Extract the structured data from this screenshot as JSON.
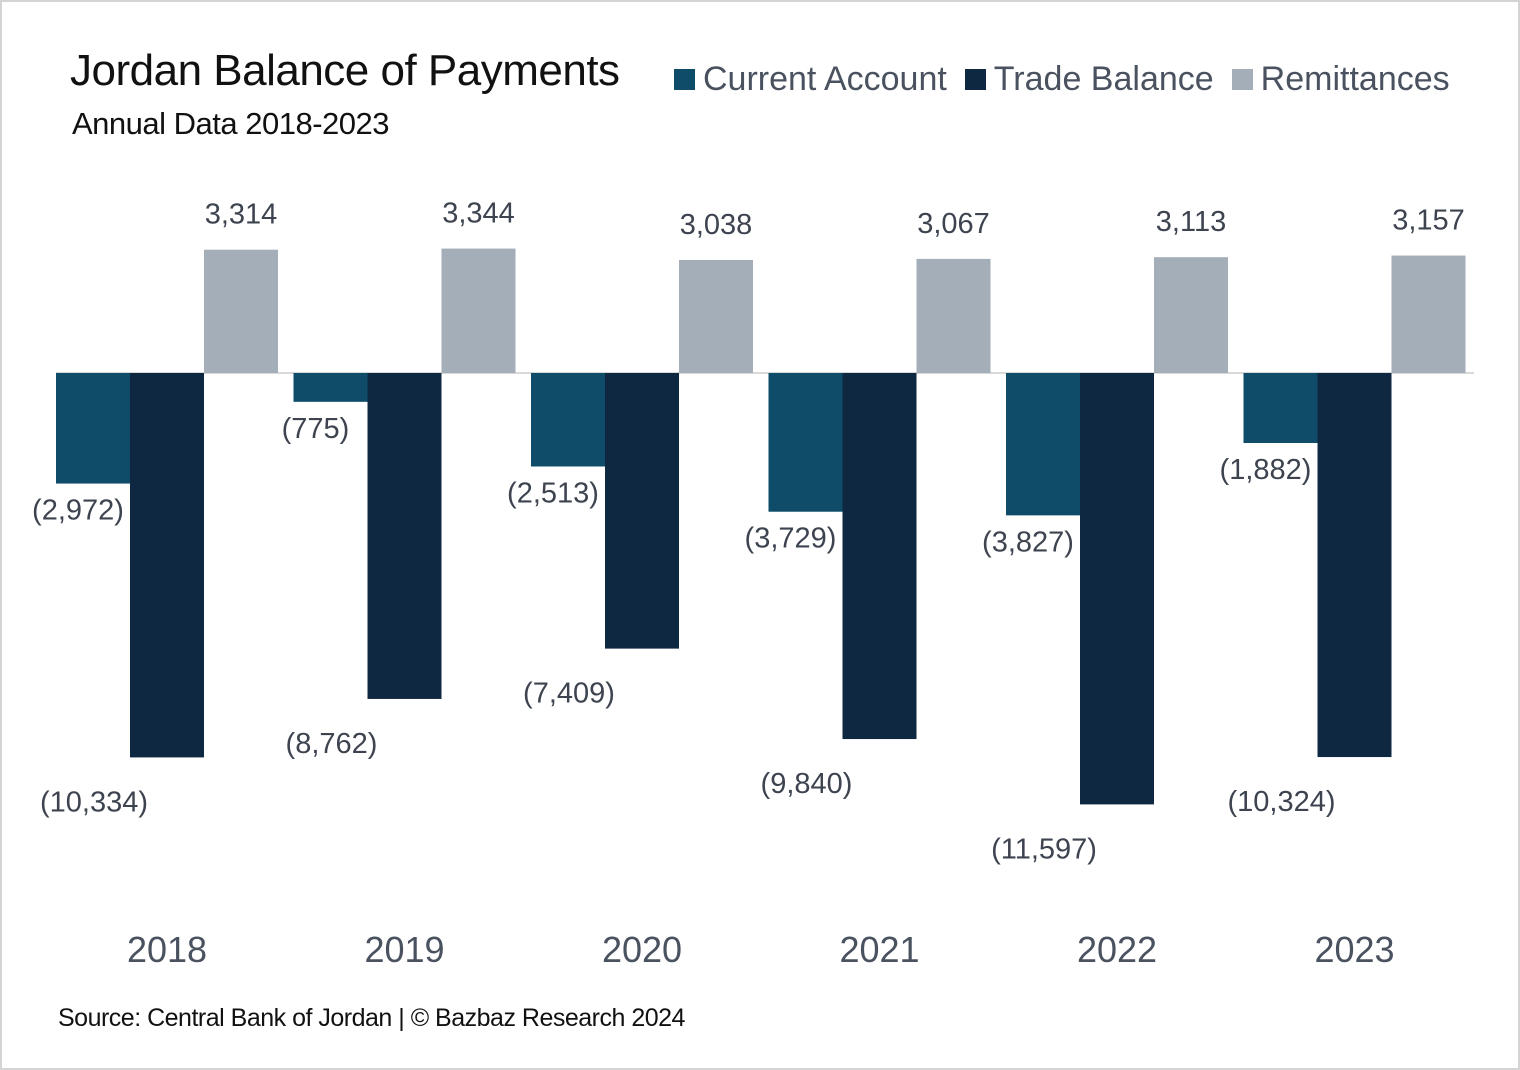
{
  "title": "Jordan Balance of Payments",
  "subtitle": "Annual Data 2018-2023",
  "source": "Source: Central Bank of Jordan | © Bazbaz Research 2024",
  "colors": {
    "current_account": "#0f4c6a",
    "trade_balance": "#0f2841",
    "remittances": "#a3aeb8",
    "axis": "#d9d9d9"
  },
  "chart_data": {
    "type": "bar",
    "title": "Jordan Balance of Payments",
    "subtitle": "Annual Data 2018-2023",
    "xlabel": "",
    "ylabel": "",
    "categories": [
      "2018",
      "2019",
      "2020",
      "2021",
      "2022",
      "2023"
    ],
    "series": [
      {
        "name": "Current Account",
        "values": [
          -2972,
          -775,
          -2513,
          -3729,
          -3827,
          -1882
        ],
        "labels": [
          "(2,972)",
          "(775)",
          "(2,513)",
          "(3,729)",
          "(3,827)",
          "(1,882)"
        ]
      },
      {
        "name": "Trade Balance",
        "values": [
          -10334,
          -8762,
          -7409,
          -9840,
          -11597,
          -10324
        ],
        "labels": [
          "(10,334)",
          "(8,762)",
          "(7,409)",
          "(9,840)",
          "(11,597)",
          "(10,324)"
        ]
      },
      {
        "name": "Remittances",
        "values": [
          3314,
          3344,
          3038,
          3067,
          3113,
          3157
        ],
        "labels": [
          "3,314",
          "3,344",
          "3,038",
          "3,067",
          "3,113",
          "3,157"
        ]
      }
    ],
    "ylim": [
      -12000,
      4500
    ],
    "grid": false,
    "legend": "top-right"
  }
}
